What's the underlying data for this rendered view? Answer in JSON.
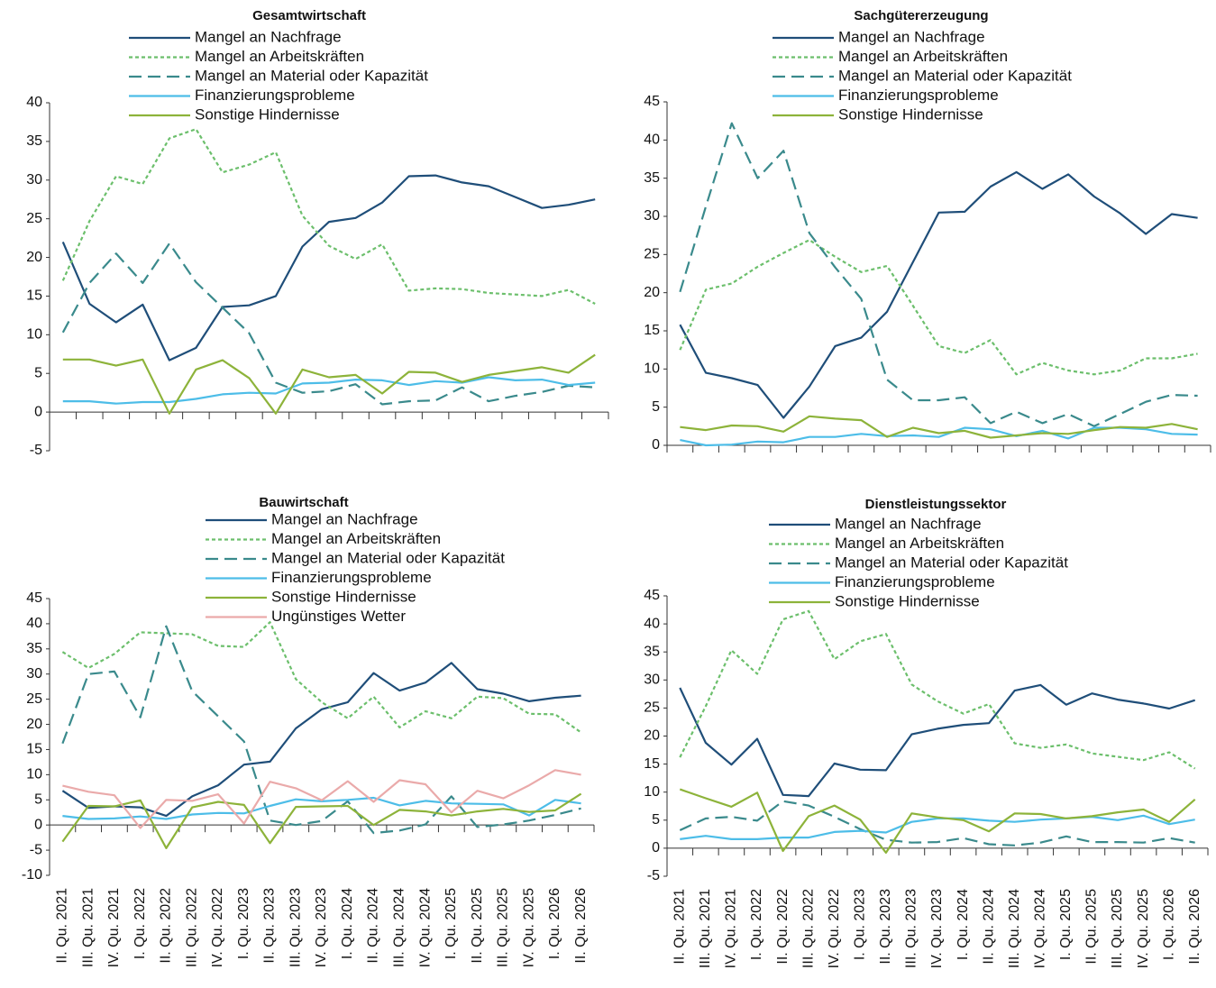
{
  "chart_data": [
    {
      "type": "line",
      "title": "Gesamtwirtschaft",
      "categories": [
        null,
        null,
        null,
        null,
        null,
        null,
        null,
        null,
        null,
        null,
        null,
        null,
        null,
        null,
        null,
        null,
        null,
        null,
        null,
        null,
        null
      ],
      "ylim": [
        -5,
        40
      ],
      "yticks": [
        -5,
        0,
        5,
        10,
        15,
        20,
        25,
        30,
        35,
        40
      ],
      "grid": false,
      "series": [
        {
          "name": "Mangel an Nachfrage",
          "color": "#1f4e79",
          "dash": "solid",
          "values": [
            22,
            14,
            11.6,
            13.9,
            6.7,
            8.3,
            13.6,
            13.8,
            15,
            21.4,
            24.6,
            25.1,
            27.1,
            30.5,
            30.6,
            29.7,
            29.2,
            27.8,
            26.4,
            26.8,
            27.5
          ]
        },
        {
          "name": "Mangel an Arbeitskräften",
          "color": "#6cbf6c",
          "dash": "dotted",
          "values": [
            17,
            24.7,
            30.5,
            29.5,
            35.4,
            36.6,
            31,
            32,
            33.6,
            25.4,
            21.5,
            19.8,
            21.7,
            15.7,
            16,
            15.9,
            15.4,
            15.2,
            15,
            15.8,
            14
          ]
        },
        {
          "name": "Mangel an Material oder Kapazität",
          "color": "#3a8a8c",
          "dash": "dashed",
          "values": [
            10.3,
            16.7,
            20.5,
            16.7,
            21.8,
            16.8,
            13.5,
            10.2,
            3.8,
            2.5,
            2.7,
            3.6,
            1,
            1.4,
            1.5,
            3.2,
            1.4,
            2.1,
            2.6,
            3.4,
            3.2
          ]
        },
        {
          "name": "Finanzierungsprobleme",
          "color": "#4dbde8",
          "dash": "solid",
          "values": [
            1.4,
            1.4,
            1.1,
            1.3,
            1.3,
            1.7,
            2.3,
            2.5,
            2.4,
            3.7,
            3.8,
            4.2,
            4.1,
            3.5,
            4,
            3.8,
            4.5,
            4.1,
            4.2,
            3.5,
            3.8
          ]
        },
        {
          "name": "Sonstige Hindernisse",
          "color": "#8db33a",
          "dash": "solid",
          "values": [
            6.8,
            6.8,
            6,
            6.8,
            -0.2,
            5.5,
            6.7,
            4.4,
            -0.2,
            5.5,
            4.5,
            4.8,
            2.4,
            5.2,
            5.1,
            3.9,
            4.8,
            5.3,
            5.8,
            5.1,
            7.4
          ]
        }
      ]
    },
    {
      "type": "line",
      "title": "Sachgütererzeugung",
      "categories": [
        null,
        null,
        null,
        null,
        null,
        null,
        null,
        null,
        null,
        null,
        null,
        null,
        null,
        null,
        null,
        null,
        null,
        null,
        null,
        null,
        null
      ],
      "ylim": [
        0,
        45
      ],
      "yticks": [
        0,
        5,
        10,
        15,
        20,
        25,
        30,
        35,
        40,
        45
      ],
      "grid": false,
      "series": [
        {
          "name": "Mangel an Nachfrage",
          "color": "#1f4e79",
          "dash": "solid",
          "values": [
            15.8,
            9.5,
            8.8,
            7.9,
            3.6,
            7.7,
            13,
            14.1,
            17.5,
            24,
            30.5,
            30.6,
            33.9,
            35.8,
            33.6,
            35.5,
            32.6,
            30.4,
            27.7,
            30.3,
            29.8
          ]
        },
        {
          "name": "Mangel an Arbeitskräften",
          "color": "#6cbf6c",
          "dash": "dotted",
          "values": [
            12.5,
            20.4,
            21.2,
            23.4,
            25.2,
            26.9,
            24.7,
            22.7,
            23.5,
            18.3,
            13,
            12.1,
            13.8,
            9.3,
            10.8,
            9.8,
            9.3,
            9.8,
            11.4,
            11.4,
            12
          ]
        },
        {
          "name": "Mangel an Material oder Kapazität",
          "color": "#3a8a8c",
          "dash": "dashed",
          "values": [
            20.1,
            31.3,
            42.2,
            35,
            38.6,
            27.8,
            23.3,
            19.2,
            8.6,
            5.9,
            5.9,
            6.3,
            2.9,
            4.4,
            2.9,
            4.1,
            2.5,
            4.1,
            5.7,
            6.6,
            6.5
          ]
        },
        {
          "name": "Finanzierungsprobleme",
          "color": "#4dbde8",
          "dash": "solid",
          "values": [
            0.7,
            0,
            0.1,
            0.5,
            0.4,
            1.1,
            1.1,
            1.5,
            1.2,
            1.3,
            1.1,
            2.3,
            2.1,
            1.2,
            1.9,
            0.9,
            2.3,
            2.3,
            2.1,
            1.5,
            1.4
          ]
        },
        {
          "name": "Sonstige Hindernisse",
          "color": "#8db33a",
          "dash": "solid",
          "values": [
            2.4,
            2,
            2.6,
            2.5,
            1.8,
            3.8,
            3.5,
            3.3,
            1.1,
            2.3,
            1.6,
            1.9,
            1,
            1.3,
            1.6,
            1.5,
            2,
            2.4,
            2.3,
            2.8,
            2.1
          ]
        }
      ]
    },
    {
      "type": "line",
      "title": "Bauwirtschaft",
      "categories": [
        "II. Qu. 2021",
        "III. Qu. 2021",
        "IV. Qu. 2021",
        "I. Qu. 2022",
        "II. Qu. 2022",
        "III. Qu. 2022",
        "IV. Qu. 2022",
        "I. Qu. 2023",
        "II. Qu. 2023",
        "III. Qu. 2023",
        "IV. Qu. 2023",
        "I. Qu. 2024",
        "II. Qu. 2024",
        "III. Qu. 2024",
        "IV. Qu. 2024",
        "I. Qu. 2025",
        "II. Qu. 2025",
        "III. Qu. 2025",
        "IV. Qu. 2025",
        "I. Qu. 2026",
        "II. Qu. 2026"
      ],
      "ylim": [
        -10,
        45
      ],
      "yticks": [
        -10,
        -5,
        0,
        5,
        10,
        15,
        20,
        25,
        30,
        35,
        40,
        45
      ],
      "grid": false,
      "series": [
        {
          "name": "Mangel an Nachfrage",
          "color": "#1f4e79",
          "dash": "solid",
          "values": [
            6.8,
            3.4,
            3.7,
            3.5,
            1.8,
            5.7,
            7.9,
            12,
            12.6,
            19.2,
            23,
            24.4,
            30.2,
            26.7,
            28.3,
            32.2,
            27,
            26.1,
            24.6,
            25.3,
            25.7
          ]
        },
        {
          "name": "Mangel an Arbeitskräften",
          "color": "#6cbf6c",
          "dash": "dotted",
          "values": [
            34.4,
            31.2,
            34,
            38.3,
            38.1,
            37.9,
            35.6,
            35.4,
            40.3,
            29,
            24.4,
            21.2,
            25.5,
            19.4,
            22.6,
            21.2,
            25.5,
            25.2,
            22.1,
            22,
            18.4
          ]
        },
        {
          "name": "Mangel an Material oder Kapazität",
          "color": "#3a8a8c",
          "dash": "dashed",
          "values": [
            16.2,
            30,
            30.5,
            21.4,
            39.5,
            26.6,
            21.6,
            16.6,
            0.9,
            0,
            0.8,
            4.7,
            -1.6,
            -1.1,
            0.1,
            5.7,
            -0.4,
            0.1,
            0.9,
            2,
            3.3
          ]
        },
        {
          "name": "Finanzierungsprobleme",
          "color": "#4dbde8",
          "dash": "solid",
          "values": [
            1.8,
            1.2,
            1.3,
            1.7,
            1.2,
            2.1,
            2.4,
            2.3,
            3.8,
            5.1,
            4.7,
            5,
            5.4,
            3.9,
            4.8,
            4.3,
            4.2,
            4.1,
            1.9,
            5,
            4.3
          ]
        },
        {
          "name": "Sonstige Hindernisse",
          "color": "#8db33a",
          "dash": "solid",
          "values": [
            -3.3,
            3.8,
            3.7,
            4.9,
            -4.6,
            3.5,
            4.6,
            4,
            -3.6,
            3.6,
            3.7,
            3.8,
            0,
            3,
            2.7,
            1.9,
            2.7,
            3.2,
            2.6,
            2.9,
            6.2
          ]
        },
        {
          "name": "Ungünstiges Wetter",
          "color": "#eaaaaa",
          "dash": "solid",
          "values": [
            7.8,
            6.6,
            5.9,
            -0.6,
            5,
            4.8,
            6.1,
            0.3,
            8.6,
            7.3,
            4.9,
            8.7,
            4.6,
            8.9,
            8.1,
            2.5,
            6.8,
            5.3,
            7.9,
            10.9,
            10
          ]
        }
      ]
    },
    {
      "type": "line",
      "title": "Dienstleistungssektor",
      "categories": [
        "II. Qu. 2021",
        "III. Qu. 2021",
        "IV. Qu. 2021",
        "I. Qu. 2022",
        "II. Qu. 2022",
        "III. Qu. 2022",
        "IV. Qu. 2022",
        "I. Qu. 2023",
        "II. Qu. 2023",
        "III. Qu. 2023",
        "IV. Qu. 2023",
        "I. Qu. 2024",
        "II. Qu. 2024",
        "III. Qu. 2024",
        "IV. Qu. 2024",
        "I. Qu. 2025",
        "II. Qu. 2025",
        "III. Qu. 2025",
        "IV. Qu. 2025",
        "I. Qu. 2026",
        "II. Qu. 2026"
      ],
      "ylim": [
        -5,
        45
      ],
      "yticks": [
        -5,
        0,
        5,
        10,
        15,
        20,
        25,
        30,
        35,
        40,
        45
      ],
      "grid": false,
      "series": [
        {
          "name": "Mangel an Nachfrage",
          "color": "#1f4e79",
          "dash": "solid",
          "values": [
            28.6,
            18.8,
            14.9,
            19.5,
            9.5,
            9.3,
            15.1,
            14,
            13.9,
            20.3,
            21.3,
            22,
            22.3,
            28.1,
            29.1,
            25.6,
            27.6,
            26.5,
            25.8,
            24.9,
            26.4
          ]
        },
        {
          "name": "Mangel an Arbeitskräften",
          "color": "#6cbf6c",
          "dash": "dotted",
          "values": [
            16.2,
            25.3,
            35.3,
            31.1,
            40.8,
            42.3,
            33.7,
            36.9,
            38.2,
            29.2,
            26.2,
            24,
            25.7,
            18.7,
            17.9,
            18.5,
            16.9,
            16.3,
            15.7,
            17.1,
            14.2
          ]
        },
        {
          "name": "Mangel an Material oder Kapazität",
          "color": "#3a8a8c",
          "dash": "dashed",
          "values": [
            3.2,
            5.3,
            5.6,
            4.9,
            8.4,
            7.6,
            5.6,
            3.4,
            1.5,
            1,
            1.1,
            1.8,
            0.7,
            0.5,
            1,
            2.1,
            1.1,
            1.1,
            1,
            1.8,
            1
          ]
        },
        {
          "name": "Finanzierungsprobleme",
          "color": "#4dbde8",
          "dash": "solid",
          "values": [
            1.6,
            2.2,
            1.6,
            1.6,
            1.9,
            1.9,
            2.9,
            3.1,
            2.8,
            4.7,
            5.3,
            5.3,
            4.9,
            4.7,
            5.1,
            5.3,
            5.6,
            5,
            5.8,
            4.3,
            5.1
          ]
        },
        {
          "name": "Sonstige Hindernisse",
          "color": "#8db33a",
          "dash": "solid",
          "values": [
            10.5,
            8.9,
            7.4,
            9.9,
            -0.5,
            5.7,
            7.6,
            5.1,
            -0.8,
            6.2,
            5.5,
            5,
            3,
            6.2,
            6.1,
            5.3,
            5.7,
            6.4,
            6.9,
            4.7,
            8.7
          ]
        }
      ]
    }
  ]
}
